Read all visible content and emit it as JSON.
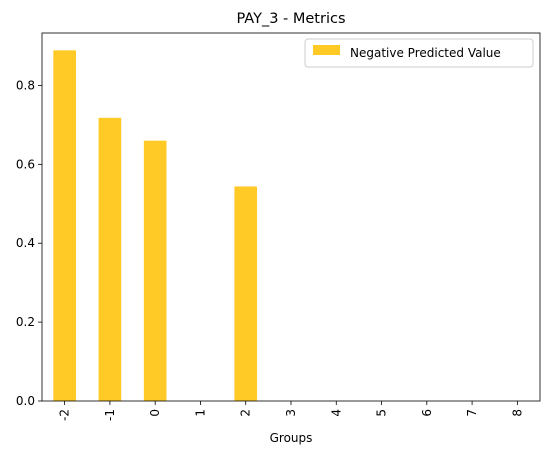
{
  "chart_data": {
    "type": "bar",
    "title": "PAY_3 - Metrics",
    "xlabel": "Groups",
    "ylabel": "",
    "categories": [
      "-2",
      "-1",
      "0",
      "1",
      "2",
      "3",
      "4",
      "5",
      "6",
      "7",
      "8"
    ],
    "series": [
      {
        "name": "Negative Predicted Value",
        "values": [
          0.889,
          0.718,
          0.66,
          0,
          0.544,
          0,
          0,
          0,
          0,
          0,
          0
        ],
        "color": "#ffc926"
      }
    ],
    "ylim": [
      0,
      0.933
    ],
    "yticks": [
      0.0,
      0.2,
      0.4,
      0.6,
      0.8
    ],
    "ytick_labels": [
      "0.0",
      "0.2",
      "0.4",
      "0.6",
      "0.8"
    ],
    "grid": false,
    "legend_position": "top-right"
  }
}
